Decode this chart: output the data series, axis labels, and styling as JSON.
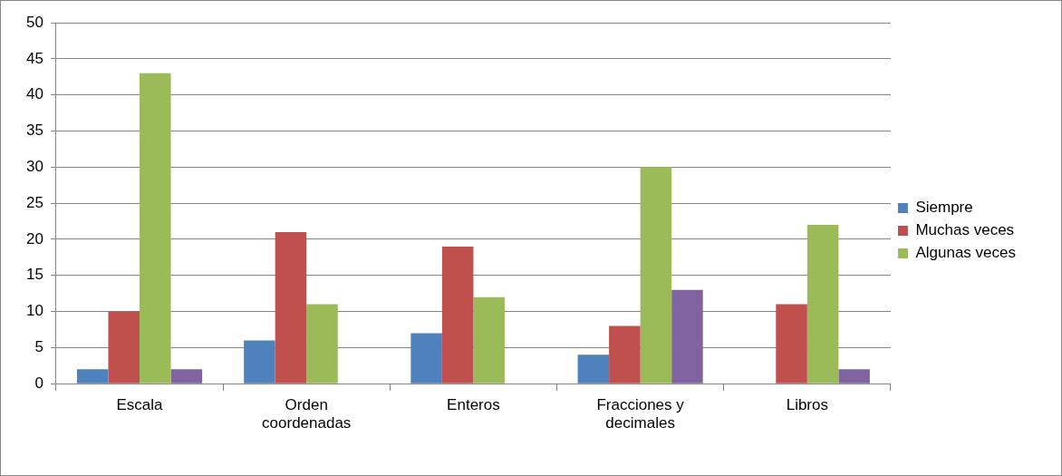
{
  "chart_data": {
    "type": "bar",
    "categories": [
      "Escala",
      "Orden coordenadas",
      "Enteros",
      "Fracciones y decimales",
      "Libros"
    ],
    "series": [
      {
        "name": "Siempre",
        "color": "#4f81bd",
        "values": [
          2,
          6,
          7,
          4,
          0
        ]
      },
      {
        "name": "Muchas veces",
        "color": "#c0504d",
        "values": [
          10,
          21,
          19,
          8,
          11
        ]
      },
      {
        "name": "Algunas veces",
        "color": "#9bbb59",
        "values": [
          43,
          11,
          12,
          30,
          22
        ]
      },
      {
        "color": "#8064a2",
        "values": [
          2,
          0,
          0,
          13,
          2
        ]
      }
    ],
    "ylim": [
      0,
      50
    ],
    "yticks": [
      0,
      5,
      10,
      15,
      20,
      25,
      30,
      35,
      40,
      45,
      50
    ],
    "grid": "y",
    "legend": "right"
  }
}
